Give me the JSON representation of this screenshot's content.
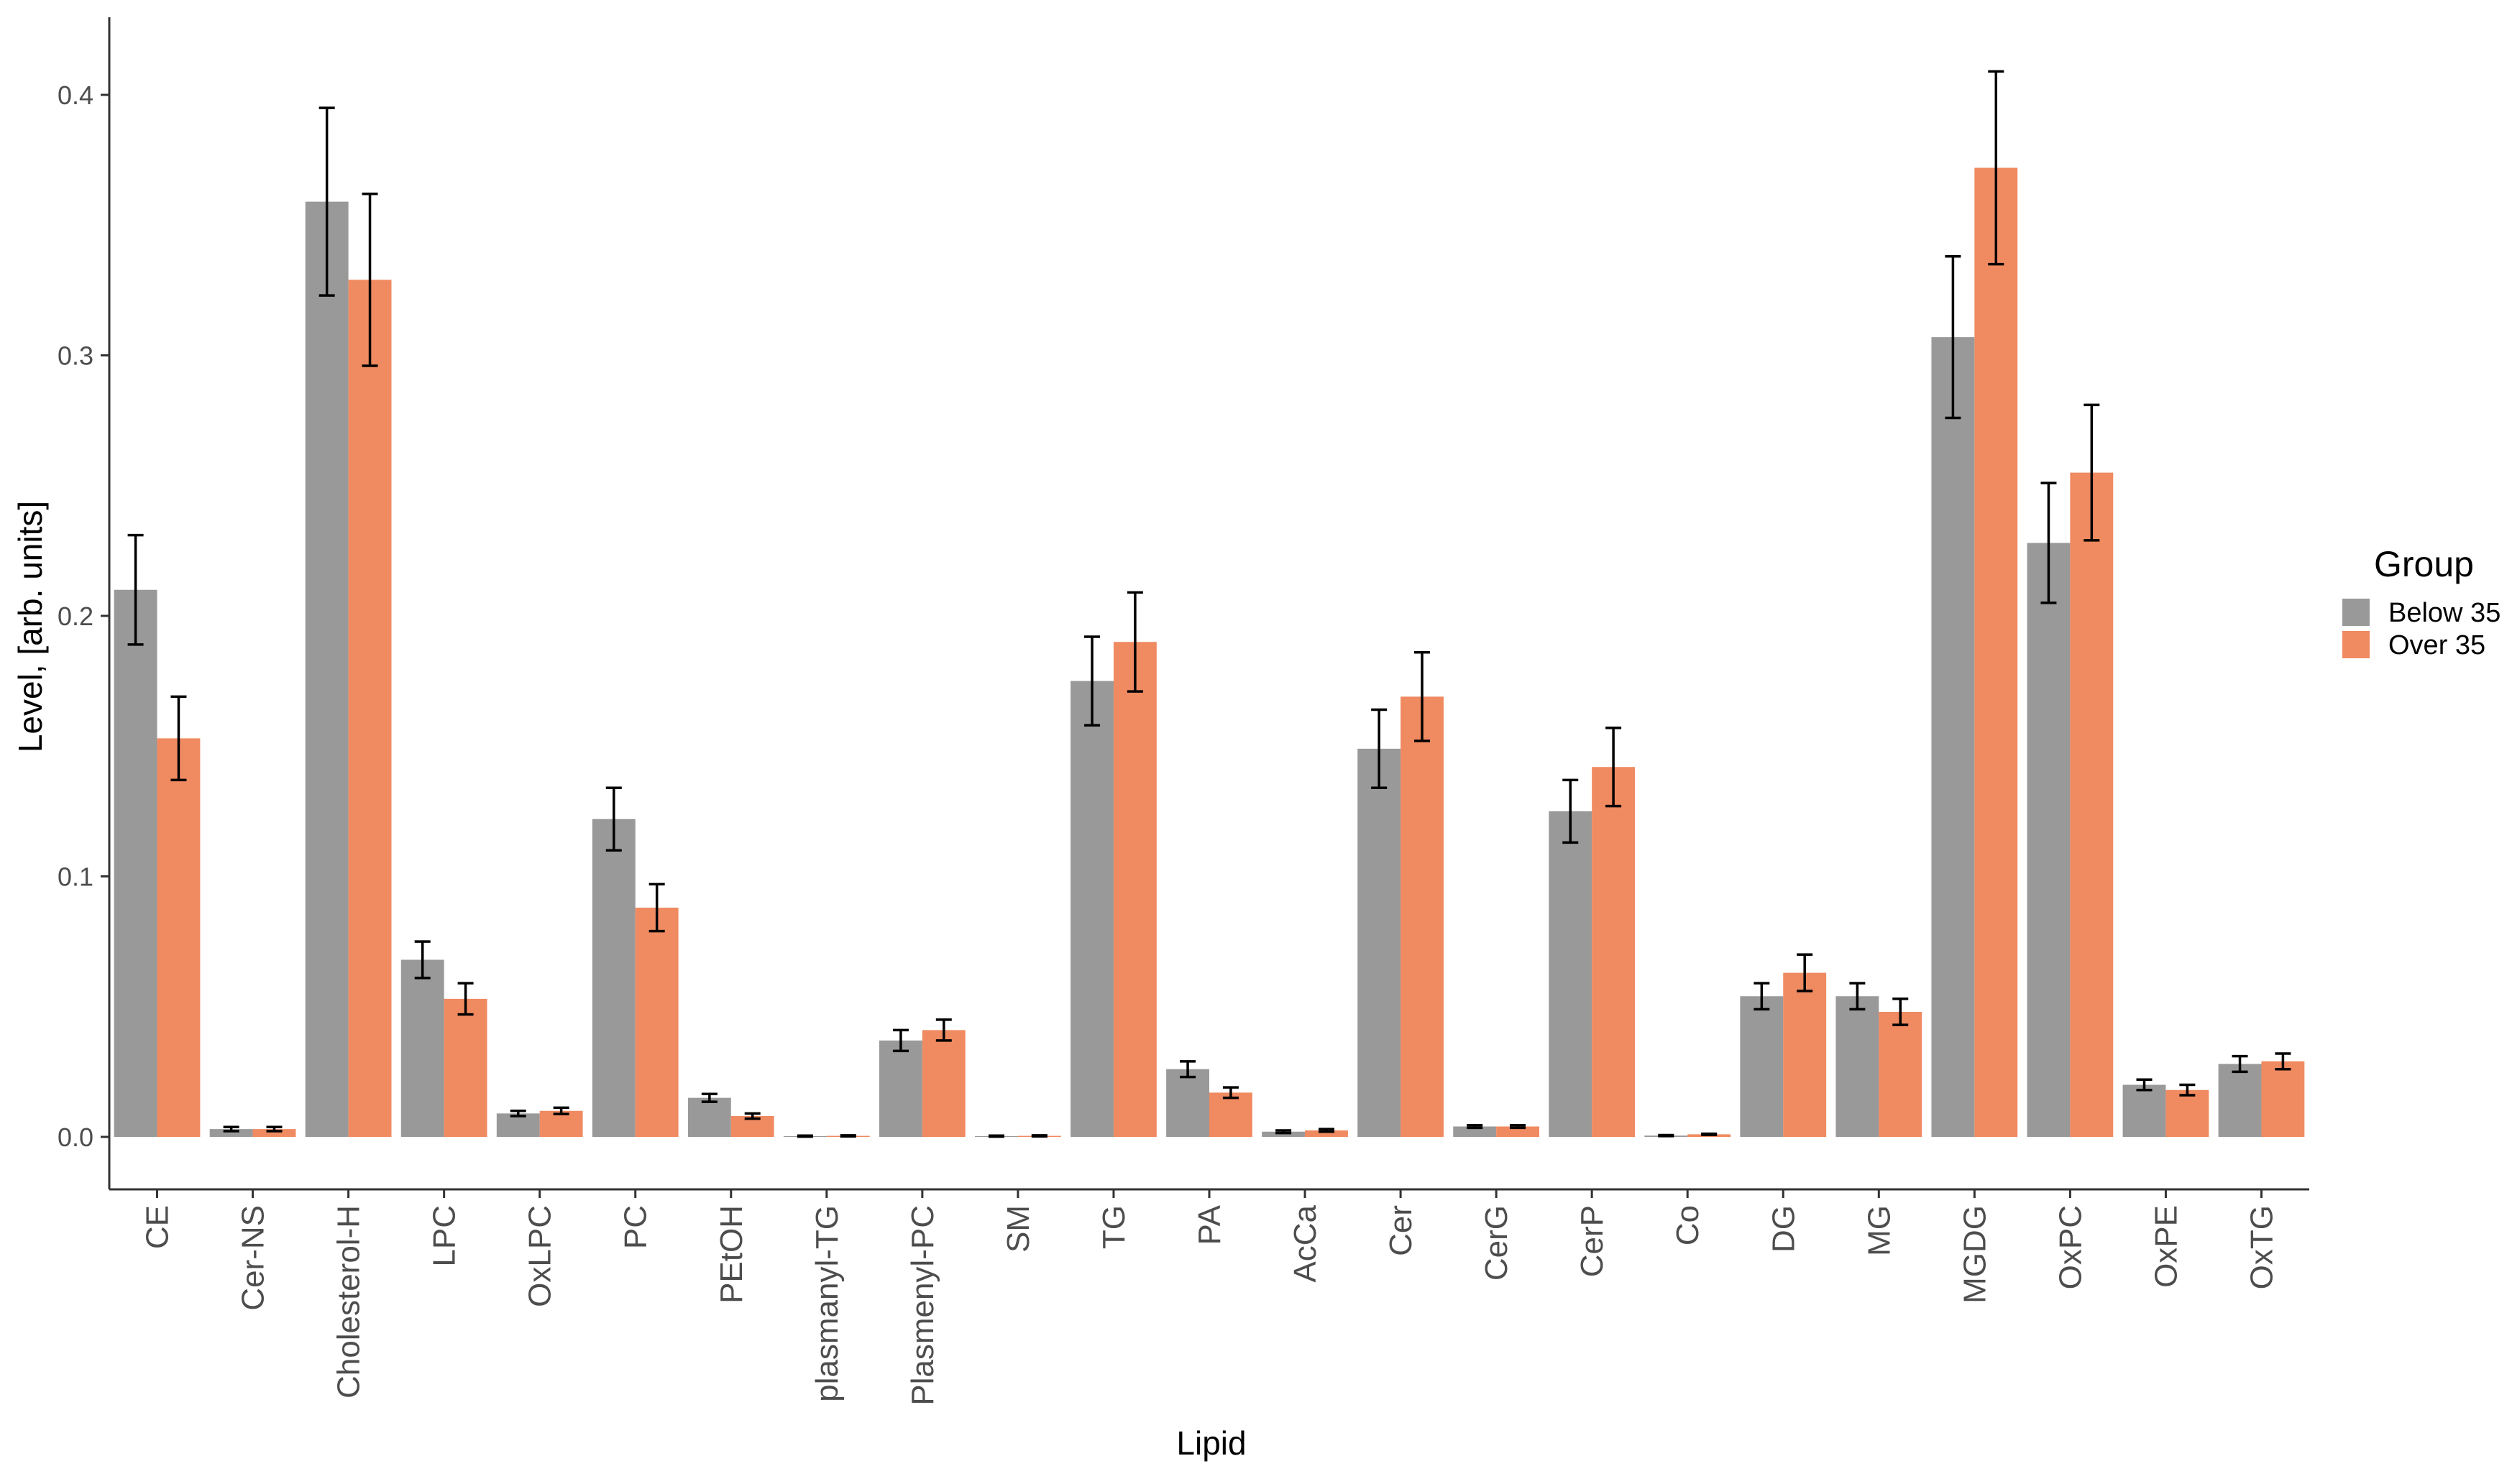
{
  "chart_data": {
    "type": "bar",
    "title": "",
    "xlabel": "Lipid",
    "ylabel": "Level, [arb. units]",
    "ylim": [
      -0.02,
      0.43
    ],
    "yticks": [
      "0.0",
      "0.1",
      "0.2",
      "0.3",
      "0.4"
    ],
    "ytick_values": [
      0.0,
      0.1,
      0.2,
      0.3,
      0.4
    ],
    "grid": false,
    "legend": {
      "title": "Group",
      "position": "right"
    },
    "categories": [
      "CE",
      "Cer-NS",
      "Cholesterol-H",
      "LPC",
      "OxLPC",
      "PC",
      "PEtOH",
      "plasmanyl-TG",
      "Plasmenyl-PC",
      "SM",
      "TG",
      "PA",
      "AcCa",
      "Cer",
      "CerG",
      "CerP",
      "Co",
      "DG",
      "MG",
      "MGDG",
      "OxPC",
      "OxPE",
      "OxTG"
    ],
    "series": [
      {
        "name": "Below 35",
        "color": "#999999",
        "values": [
          0.21,
          0.003,
          0.359,
          0.068,
          0.009,
          0.122,
          0.015,
          0.0003,
          0.037,
          0.0003,
          0.175,
          0.026,
          0.002,
          0.149,
          0.004,
          0.125,
          0.0005,
          0.054,
          0.054,
          0.307,
          0.228,
          0.02,
          0.028
        ],
        "errors": [
          0.021,
          0.0008,
          0.036,
          0.007,
          0.001,
          0.012,
          0.0015,
          0.0002,
          0.004,
          0.0002,
          0.017,
          0.003,
          0.0005,
          0.015,
          0.0005,
          0.012,
          0.0002,
          0.005,
          0.005,
          0.031,
          0.023,
          0.002,
          0.003
        ]
      },
      {
        "name": "Over 35",
        "color": "#F08A61",
        "values": [
          0.153,
          0.003,
          0.329,
          0.053,
          0.01,
          0.088,
          0.008,
          0.0004,
          0.041,
          0.0004,
          0.19,
          0.017,
          0.0025,
          0.169,
          0.004,
          0.142,
          0.001,
          0.063,
          0.048,
          0.372,
          0.255,
          0.018,
          0.029
        ],
        "errors": [
          0.016,
          0.0008,
          0.033,
          0.006,
          0.0012,
          0.009,
          0.001,
          0.0002,
          0.004,
          0.0002,
          0.019,
          0.002,
          0.0005,
          0.017,
          0.0005,
          0.015,
          0.0002,
          0.007,
          0.005,
          0.037,
          0.026,
          0.002,
          0.003
        ]
      }
    ]
  }
}
